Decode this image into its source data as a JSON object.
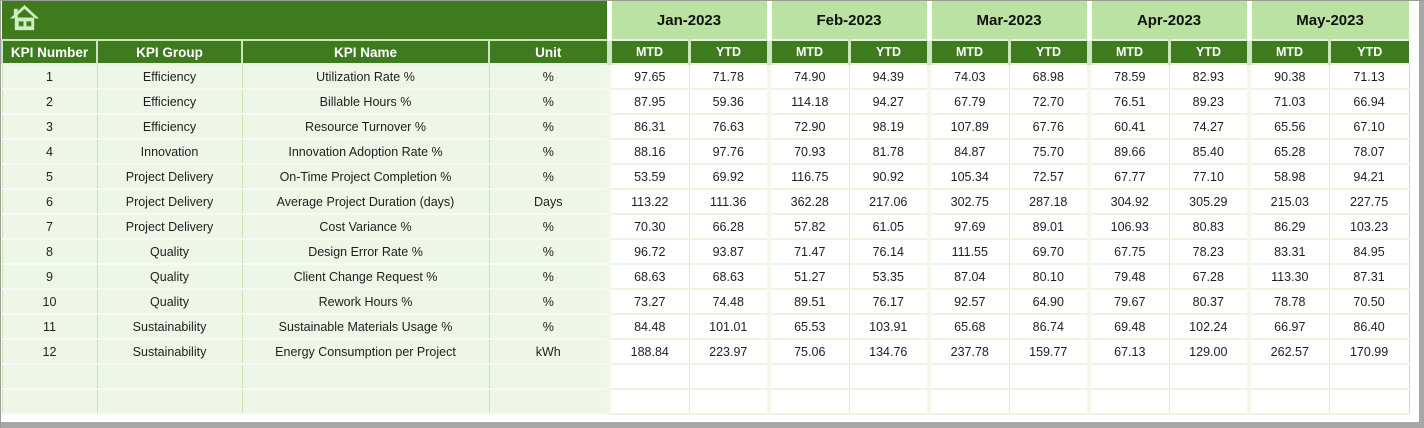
{
  "window": {
    "home_icon": "home-icon"
  },
  "table": {
    "left_headers": [
      "KPI Number",
      "KPI Group",
      "KPI Name",
      "Unit"
    ],
    "months": [
      "Jan-2023",
      "Feb-2023",
      "Mar-2023",
      "Apr-2023",
      "May-2023"
    ],
    "sub_headers": [
      "MTD",
      "YTD"
    ],
    "rows": [
      {
        "number": "1",
        "group": "Efficiency",
        "name": "Utilization Rate %",
        "unit": "%",
        "values": [
          "97.65",
          "71.78",
          "74.90",
          "94.39",
          "74.03",
          "68.98",
          "78.59",
          "82.93",
          "90.38",
          "71.13"
        ]
      },
      {
        "number": "2",
        "group": "Efficiency",
        "name": "Billable Hours %",
        "unit": "%",
        "values": [
          "87.95",
          "59.36",
          "114.18",
          "94.27",
          "67.79",
          "72.70",
          "76.51",
          "89.23",
          "71.03",
          "66.94"
        ]
      },
      {
        "number": "3",
        "group": "Efficiency",
        "name": "Resource Turnover %",
        "unit": "%",
        "values": [
          "86.31",
          "76.63",
          "72.90",
          "98.19",
          "107.89",
          "67.76",
          "60.41",
          "74.27",
          "65.56",
          "67.10"
        ]
      },
      {
        "number": "4",
        "group": "Innovation",
        "name": "Innovation Adoption Rate %",
        "unit": "%",
        "values": [
          "88.16",
          "97.76",
          "70.93",
          "81.78",
          "84.87",
          "75.70",
          "89.66",
          "85.40",
          "65.28",
          "78.07"
        ]
      },
      {
        "number": "5",
        "group": "Project Delivery",
        "name": "On-Time Project Completion %",
        "unit": "%",
        "values": [
          "53.59",
          "69.92",
          "116.75",
          "90.92",
          "105.34",
          "72.57",
          "67.77",
          "77.10",
          "58.98",
          "94.21"
        ]
      },
      {
        "number": "6",
        "group": "Project Delivery",
        "name": "Average Project Duration (days)",
        "unit": "Days",
        "values": [
          "113.22",
          "111.36",
          "362.28",
          "217.06",
          "302.75",
          "287.18",
          "304.92",
          "305.29",
          "215.03",
          "227.75"
        ]
      },
      {
        "number": "7",
        "group": "Project Delivery",
        "name": "Cost Variance %",
        "unit": "%",
        "values": [
          "70.30",
          "66.28",
          "57.82",
          "61.05",
          "97.69",
          "89.01",
          "106.93",
          "80.83",
          "86.29",
          "103.23"
        ]
      },
      {
        "number": "8",
        "group": "Quality",
        "name": "Design Error Rate %",
        "unit": "%",
        "values": [
          "96.72",
          "93.87",
          "71.47",
          "76.14",
          "111.55",
          "69.70",
          "67.75",
          "78.23",
          "83.31",
          "84.95"
        ]
      },
      {
        "number": "9",
        "group": "Quality",
        "name": "Client Change Request %",
        "unit": "%",
        "values": [
          "68.63",
          "68.63",
          "51.27",
          "53.35",
          "87.04",
          "80.10",
          "79.48",
          "67.28",
          "113.30",
          "87.31"
        ]
      },
      {
        "number": "10",
        "group": "Quality",
        "name": "Rework Hours %",
        "unit": "%",
        "values": [
          "73.27",
          "74.48",
          "89.51",
          "76.17",
          "92.57",
          "64.90",
          "79.67",
          "80.37",
          "78.78",
          "70.50"
        ]
      },
      {
        "number": "11",
        "group": "Sustainability",
        "name": "Sustainable Materials Usage %",
        "unit": "%",
        "values": [
          "84.48",
          "101.01",
          "65.53",
          "103.91",
          "65.68",
          "86.74",
          "69.48",
          "102.24",
          "66.97",
          "86.40"
        ]
      },
      {
        "number": "12",
        "group": "Sustainability",
        "name": "Energy Consumption per Project",
        "unit": "kWh",
        "values": [
          "188.84",
          "223.97",
          "75.06",
          "134.76",
          "237.78",
          "159.77",
          "67.13",
          "129.00",
          "262.57",
          "170.99"
        ]
      }
    ],
    "empty_row_count": 2
  },
  "colors": {
    "dark_green": "#3e7b1f",
    "banner_green": "#b9e2a3",
    "row_green": "#eef6e8",
    "grid_green": "#cde5bd",
    "icon_green": "#cfeebd",
    "scrollbar_gray": "#a7a7a7"
  }
}
